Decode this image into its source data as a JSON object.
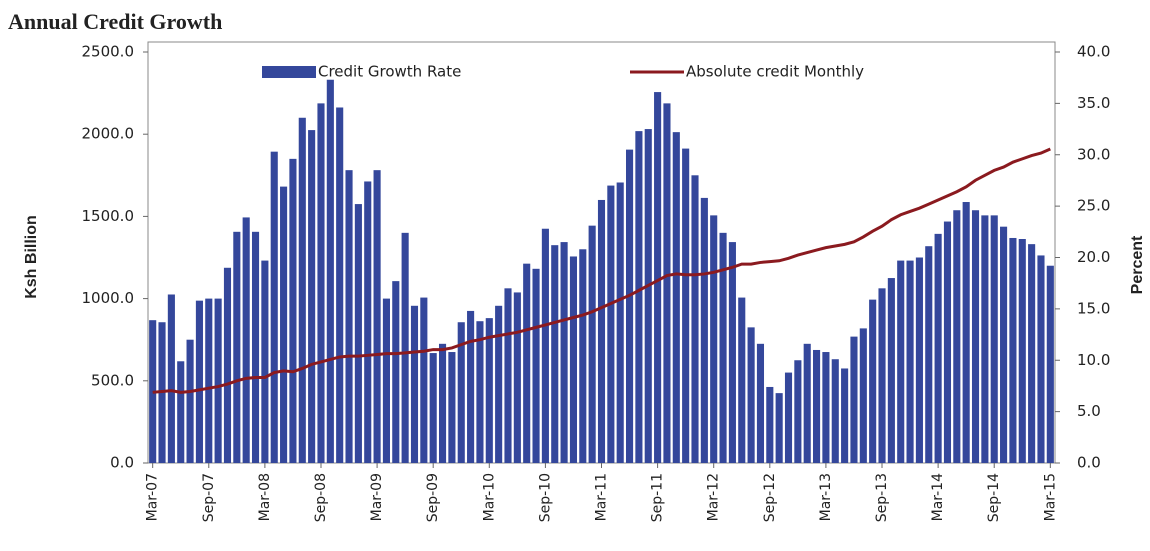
{
  "chart_data": {
    "type": "bar-line",
    "title": "Annual Credit Growth",
    "y_label": "Ksh Billion",
    "y2_label": "Percent",
    "categories": [
      "Mar-07",
      null,
      null,
      null,
      null,
      null,
      "Sep-07",
      null,
      null,
      null,
      null,
      null,
      "Mar-08",
      null,
      null,
      null,
      null,
      null,
      "Sep-08",
      null,
      null,
      null,
      null,
      null,
      "Mar-09",
      null,
      null,
      null,
      null,
      null,
      "Sep-09",
      null,
      null,
      null,
      null,
      null,
      "Mar-10",
      null,
      null,
      null,
      null,
      null,
      "Sep-10",
      null,
      null,
      null,
      null,
      null,
      "Mar-11",
      null,
      null,
      null,
      null,
      null,
      "Sep-11",
      null,
      null,
      null,
      null,
      null,
      "Mar-12",
      null,
      null,
      null,
      null,
      null,
      "Sep-12",
      null,
      null,
      null,
      null,
      null,
      "Mar-13",
      null,
      null,
      null,
      null,
      null,
      "Sep-13",
      null,
      null,
      null,
      null,
      null,
      "Mar-14",
      null,
      null,
      null,
      null,
      null,
      "Sep-14",
      null,
      null,
      null,
      null,
      null,
      "Mar-15"
    ],
    "series": [
      {
        "name": "Credit Growth Rate",
        "type": "bar",
        "axis": "y2",
        "color": "#34479b",
        "values": [
          13.9,
          13.7,
          16.4,
          9.9,
          12.0,
          15.8,
          16.0,
          16.0,
          19.0,
          22.5,
          23.9,
          22.5,
          19.7,
          30.3,
          26.9,
          29.6,
          33.6,
          32.4,
          35.0,
          37.3,
          34.6,
          28.5,
          25.2,
          27.4,
          28.5,
          16.0,
          17.7,
          22.4,
          15.3,
          16.1,
          10.7,
          11.6,
          10.8,
          13.7,
          14.8,
          13.8,
          14.1,
          15.3,
          17.0,
          16.6,
          19.4,
          18.9,
          22.8,
          21.2,
          21.5,
          20.1,
          20.8,
          23.1,
          25.6,
          27.0,
          27.3,
          30.5,
          32.3,
          32.5,
          36.1,
          35.0,
          32.2,
          30.6,
          28.0,
          25.8,
          24.1,
          22.4,
          21.5,
          16.1,
          13.2,
          11.6,
          7.4,
          6.8,
          8.8,
          10.0,
          11.6,
          11.0,
          10.8,
          10.1,
          9.2,
          12.3,
          13.1,
          15.9,
          17.0,
          18.0,
          19.7,
          19.7,
          20.0,
          21.1,
          22.3,
          23.5,
          24.6,
          25.4,
          24.6,
          24.1,
          24.1,
          23.0,
          21.9,
          21.8,
          21.3,
          20.2,
          19.2
        ]
      },
      {
        "name": "Absolute credit Monthly",
        "type": "line",
        "axis": "y",
        "color": "#8b1a1f",
        "values": [
          430,
          435,
          440,
          430,
          435,
          445,
          455,
          465,
          480,
          500,
          515,
          520,
          520,
          550,
          560,
          555,
          575,
          600,
          615,
          630,
          645,
          650,
          650,
          655,
          660,
          665,
          665,
          670,
          675,
          680,
          690,
          690,
          700,
          720,
          740,
          750,
          765,
          775,
          785,
          795,
          810,
          825,
          840,
          855,
          870,
          885,
          900,
          920,
          945,
          970,
          995,
          1020,
          1050,
          1080,
          1110,
          1140,
          1150,
          1145,
          1145,
          1150,
          1160,
          1175,
          1190,
          1210,
          1210,
          1220,
          1225,
          1230,
          1245,
          1265,
          1280,
          1295,
          1310,
          1320,
          1330,
          1345,
          1375,
          1410,
          1440,
          1480,
          1510,
          1530,
          1550,
          1575,
          1600,
          1625,
          1650,
          1680,
          1720,
          1750,
          1780,
          1800,
          1830,
          1850,
          1870,
          1885,
          1910
        ]
      }
    ],
    "ylim": [
      0,
      2500
    ],
    "yticks": [
      {
        "value": 0,
        "label": "0.0"
      },
      {
        "value": 500,
        "label": "500.0"
      },
      {
        "value": 1000,
        "label": "1000.0"
      },
      {
        "value": 1500,
        "label": "1500.0"
      },
      {
        "value": 2000,
        "label": "2000.0"
      },
      {
        "value": 2500,
        "label": "2500.0"
      }
    ],
    "y2lim": [
      0,
      40
    ],
    "y2ticks": [
      {
        "value": 0,
        "label": "0.0"
      },
      {
        "value": 5,
        "label": "5.0"
      },
      {
        "value": 10,
        "label": "10.0"
      },
      {
        "value": 15,
        "label": "15.0"
      },
      {
        "value": 20,
        "label": "20.0"
      },
      {
        "value": 25,
        "label": "25.0"
      },
      {
        "value": 30,
        "label": "30.0"
      },
      {
        "value": 35,
        "label": "35.0"
      },
      {
        "value": 40,
        "label": "40.0"
      }
    ],
    "legend": "top"
  }
}
